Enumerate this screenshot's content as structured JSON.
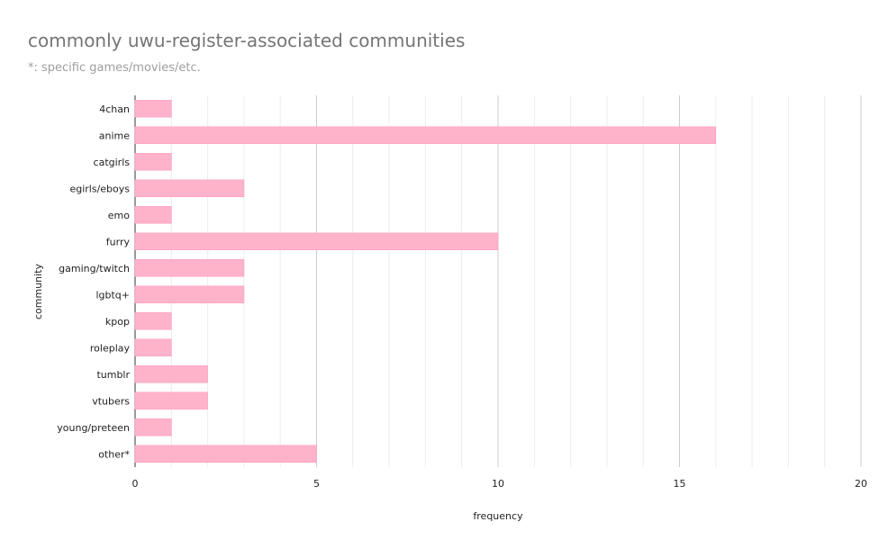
{
  "chart_data": {
    "type": "bar",
    "orientation": "horizontal",
    "title": "commonly uwu-register-associated communities",
    "subtitle": "*: specific games/movies/etc.",
    "xlabel": "frequency",
    "ylabel": "community",
    "categories": [
      "4chan",
      "anime",
      "catgirls",
      "egirls/eboys",
      "emo",
      "furry",
      "gaming/twitch",
      "lgbtq+",
      "kpop",
      "roleplay",
      "tumblr",
      "vtubers",
      "young/preteen",
      "other*"
    ],
    "values": [
      1,
      16,
      1,
      3,
      1,
      10,
      3,
      3,
      1,
      1,
      2,
      2,
      1,
      5
    ],
    "xlim": [
      0,
      20
    ],
    "xticks": [
      0,
      5,
      10,
      15,
      20
    ],
    "grid": true,
    "bar_color": "#ffb3cb",
    "bar_border_color": "#ff9fbf"
  }
}
